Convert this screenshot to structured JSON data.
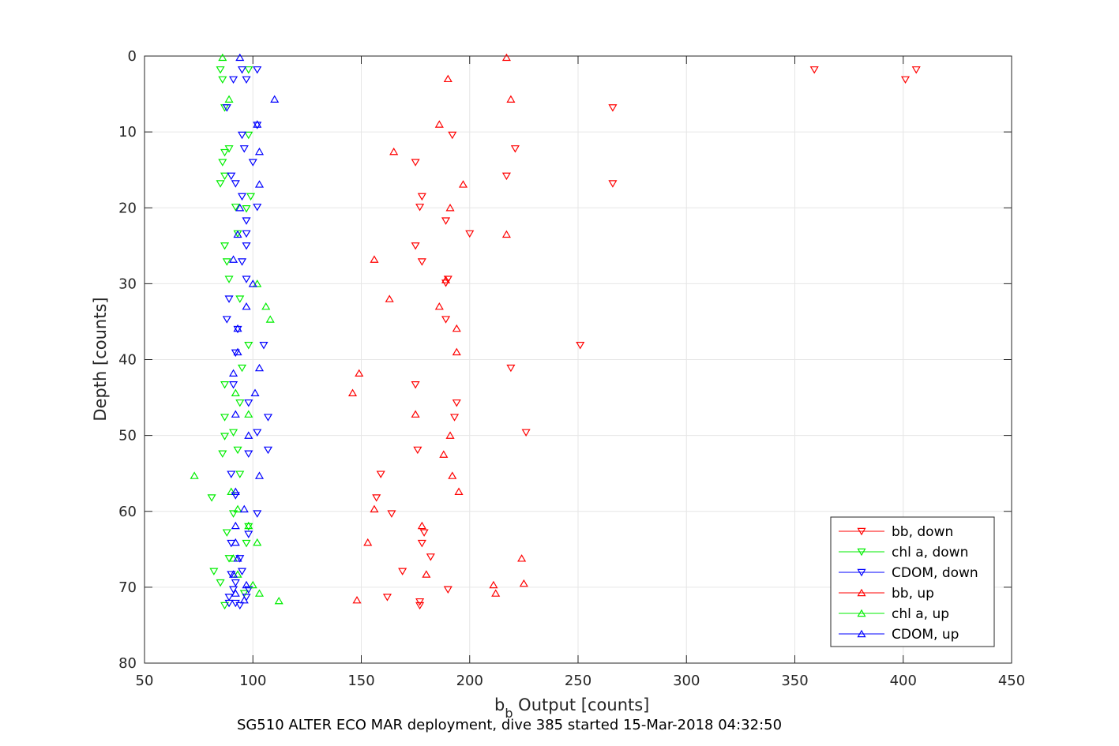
{
  "chart_data": {
    "type": "scatter",
    "title": "",
    "xlabel_main": "b",
    "xlabel_sub": "b",
    "xlabel_rest": " Output [counts]",
    "ylabel": "Depth [counts]",
    "caption": "SG510 ALTER ECO MAR deployment, dive 385 started 15-Mar-2018 04:32:50",
    "xlim": [
      50,
      450
    ],
    "ylim": [
      0,
      80
    ],
    "y_reversed": true,
    "grid": true,
    "legend_position": "bottom-right",
    "xticks": [
      "50",
      "100",
      "150",
      "200",
      "250",
      "300",
      "350",
      "400",
      "450"
    ],
    "yticks": [
      "0",
      "10",
      "20",
      "30",
      "40",
      "50",
      "60",
      "70",
      "80"
    ],
    "series": [
      {
        "name": "bb, down",
        "color": "#ff0000",
        "marker": "triangle-down",
        "points": [
          [
            359,
            1.8
          ],
          [
            406,
            1.8
          ],
          [
            401,
            3.1
          ],
          [
            266,
            6.8
          ],
          [
            192,
            10.4
          ],
          [
            221,
            12.2
          ],
          [
            175,
            14.0
          ],
          [
            217,
            15.8
          ],
          [
            266,
            16.8
          ],
          [
            178,
            18.5
          ],
          [
            177,
            19.9
          ],
          [
            189,
            21.7
          ],
          [
            200,
            23.4
          ],
          [
            175,
            25.0
          ],
          [
            178,
            27.1
          ],
          [
            190,
            29.4
          ],
          [
            189,
            29.9
          ],
          [
            189,
            34.7
          ],
          [
            251,
            38.1
          ],
          [
            219,
            41.1
          ],
          [
            175,
            43.3
          ],
          [
            194,
            45.7
          ],
          [
            193,
            47.6
          ],
          [
            226,
            49.6
          ],
          [
            176,
            51.9
          ],
          [
            159,
            55.1
          ],
          [
            157,
            58.2
          ],
          [
            164,
            60.3
          ],
          [
            179,
            62.8
          ],
          [
            178,
            64.2
          ],
          [
            182,
            66.0
          ],
          [
            169,
            67.9
          ],
          [
            190,
            70.3
          ],
          [
            162,
            71.3
          ],
          [
            177,
            71.9
          ],
          [
            177,
            72.4
          ]
        ]
      },
      {
        "name": "chl a, down",
        "color": "#00ee00",
        "marker": "triangle-down",
        "points": [
          [
            85,
            1.8
          ],
          [
            98,
            1.8
          ],
          [
            86,
            3.1
          ],
          [
            87,
            6.8
          ],
          [
            98,
            10.4
          ],
          [
            89,
            12.2
          ],
          [
            87,
            12.7
          ],
          [
            86,
            14.0
          ],
          [
            87,
            15.8
          ],
          [
            85,
            16.8
          ],
          [
            99,
            18.5
          ],
          [
            92,
            19.9
          ],
          [
            97,
            20.1
          ],
          [
            93,
            23.4
          ],
          [
            87,
            25.0
          ],
          [
            88,
            27.1
          ],
          [
            89,
            29.4
          ],
          [
            94,
            32.0
          ],
          [
            98,
            38.1
          ],
          [
            95,
            41.1
          ],
          [
            87,
            43.3
          ],
          [
            94,
            45.7
          ],
          [
            87,
            47.6
          ],
          [
            91,
            49.6
          ],
          [
            87,
            50.1
          ],
          [
            93,
            51.9
          ],
          [
            86,
            52.4
          ],
          [
            94,
            55.1
          ],
          [
            81,
            58.2
          ],
          [
            91,
            60.3
          ],
          [
            98,
            62.0
          ],
          [
            88,
            62.8
          ],
          [
            97,
            64.2
          ],
          [
            89,
            66.2
          ],
          [
            82,
            67.9
          ],
          [
            85,
            69.4
          ],
          [
            96,
            70.8
          ],
          [
            87,
            72.4
          ]
        ]
      },
      {
        "name": "CDOM, down",
        "color": "#0000ff",
        "marker": "triangle-down",
        "points": [
          [
            95,
            1.8
          ],
          [
            102,
            1.8
          ],
          [
            91,
            3.1
          ],
          [
            97,
            3.1
          ],
          [
            88,
            6.8
          ],
          [
            102,
            9.1
          ],
          [
            95,
            10.4
          ],
          [
            96,
            12.2
          ],
          [
            100,
            14.0
          ],
          [
            90,
            15.8
          ],
          [
            92,
            16.8
          ],
          [
            95,
            18.5
          ],
          [
            102,
            19.9
          ],
          [
            97,
            21.7
          ],
          [
            97,
            23.4
          ],
          [
            97,
            25.0
          ],
          [
            95,
            27.1
          ],
          [
            97,
            29.4
          ],
          [
            89,
            32.0
          ],
          [
            88,
            34.7
          ],
          [
            93,
            36.0
          ],
          [
            105,
            38.1
          ],
          [
            92,
            39.1
          ],
          [
            91,
            43.3
          ],
          [
            98,
            45.7
          ],
          [
            107,
            47.6
          ],
          [
            102,
            49.6
          ],
          [
            98,
            52.4
          ],
          [
            107,
            51.9
          ],
          [
            90,
            55.1
          ],
          [
            92,
            57.9
          ],
          [
            102,
            60.3
          ],
          [
            98,
            63.0
          ],
          [
            90,
            64.2
          ],
          [
            94,
            66.2
          ],
          [
            90,
            68.3
          ],
          [
            95,
            67.9
          ],
          [
            92,
            69.4
          ],
          [
            91,
            70.3
          ],
          [
            98,
            70.3
          ],
          [
            97,
            71.3
          ],
          [
            89,
            71.3
          ],
          [
            92,
            72.1
          ],
          [
            94,
            72.4
          ],
          [
            89,
            72.1
          ]
        ]
      },
      {
        "name": "bb, up",
        "color": "#ff0000",
        "marker": "triangle-up",
        "points": [
          [
            217,
            0.2
          ],
          [
            190,
            3.0
          ],
          [
            219,
            5.7
          ],
          [
            186,
            9.0
          ],
          [
            165,
            12.6
          ],
          [
            197,
            16.9
          ],
          [
            191,
            20.0
          ],
          [
            217,
            23.5
          ],
          [
            156,
            26.8
          ],
          [
            189,
            29.5
          ],
          [
            163,
            32.0
          ],
          [
            186,
            33.0
          ],
          [
            194,
            35.9
          ],
          [
            194,
            39.0
          ],
          [
            149,
            41.8
          ],
          [
            146,
            44.4
          ],
          [
            175,
            47.2
          ],
          [
            191,
            50.0
          ],
          [
            188,
            52.5
          ],
          [
            192,
            55.3
          ],
          [
            195,
            57.4
          ],
          [
            156,
            59.7
          ],
          [
            178,
            61.9
          ],
          [
            153,
            64.1
          ],
          [
            224,
            66.2
          ],
          [
            180,
            68.3
          ],
          [
            211,
            69.7
          ],
          [
            225,
            69.5
          ],
          [
            212,
            70.8
          ],
          [
            148,
            71.7
          ]
        ]
      },
      {
        "name": "chl a, up",
        "color": "#00ee00",
        "marker": "triangle-up",
        "points": [
          [
            86,
            0.2
          ],
          [
            89,
            5.7
          ],
          [
            102,
            30.0
          ],
          [
            106,
            33.0
          ],
          [
            108,
            34.7
          ],
          [
            92,
            44.4
          ],
          [
            98,
            47.2
          ],
          [
            73,
            55.3
          ],
          [
            90,
            57.4
          ],
          [
            93,
            59.7
          ],
          [
            98,
            61.9
          ],
          [
            102,
            64.1
          ],
          [
            91,
            66.2
          ],
          [
            93,
            68.3
          ],
          [
            100,
            69.7
          ],
          [
            103,
            70.8
          ],
          [
            112,
            71.8
          ]
        ]
      },
      {
        "name": "CDOM, up",
        "color": "#0000ff",
        "marker": "triangle-up",
        "points": [
          [
            94,
            0.2
          ],
          [
            110,
            5.7
          ],
          [
            102,
            9.0
          ],
          [
            103,
            12.6
          ],
          [
            103,
            16.9
          ],
          [
            94,
            20.0
          ],
          [
            93,
            23.5
          ],
          [
            91,
            26.8
          ],
          [
            100,
            30.0
          ],
          [
            97,
            33.0
          ],
          [
            93,
            35.9
          ],
          [
            93,
            39.0
          ],
          [
            91,
            41.8
          ],
          [
            103,
            41.1
          ],
          [
            101,
            44.4
          ],
          [
            92,
            47.2
          ],
          [
            98,
            50.0
          ],
          [
            103,
            55.3
          ],
          [
            92,
            57.4
          ],
          [
            96,
            59.7
          ],
          [
            92,
            61.9
          ],
          [
            92,
            64.1
          ],
          [
            93,
            66.2
          ],
          [
            91,
            68.3
          ],
          [
            97,
            69.7
          ],
          [
            92,
            70.8
          ],
          [
            96,
            71.7
          ]
        ]
      }
    ]
  }
}
